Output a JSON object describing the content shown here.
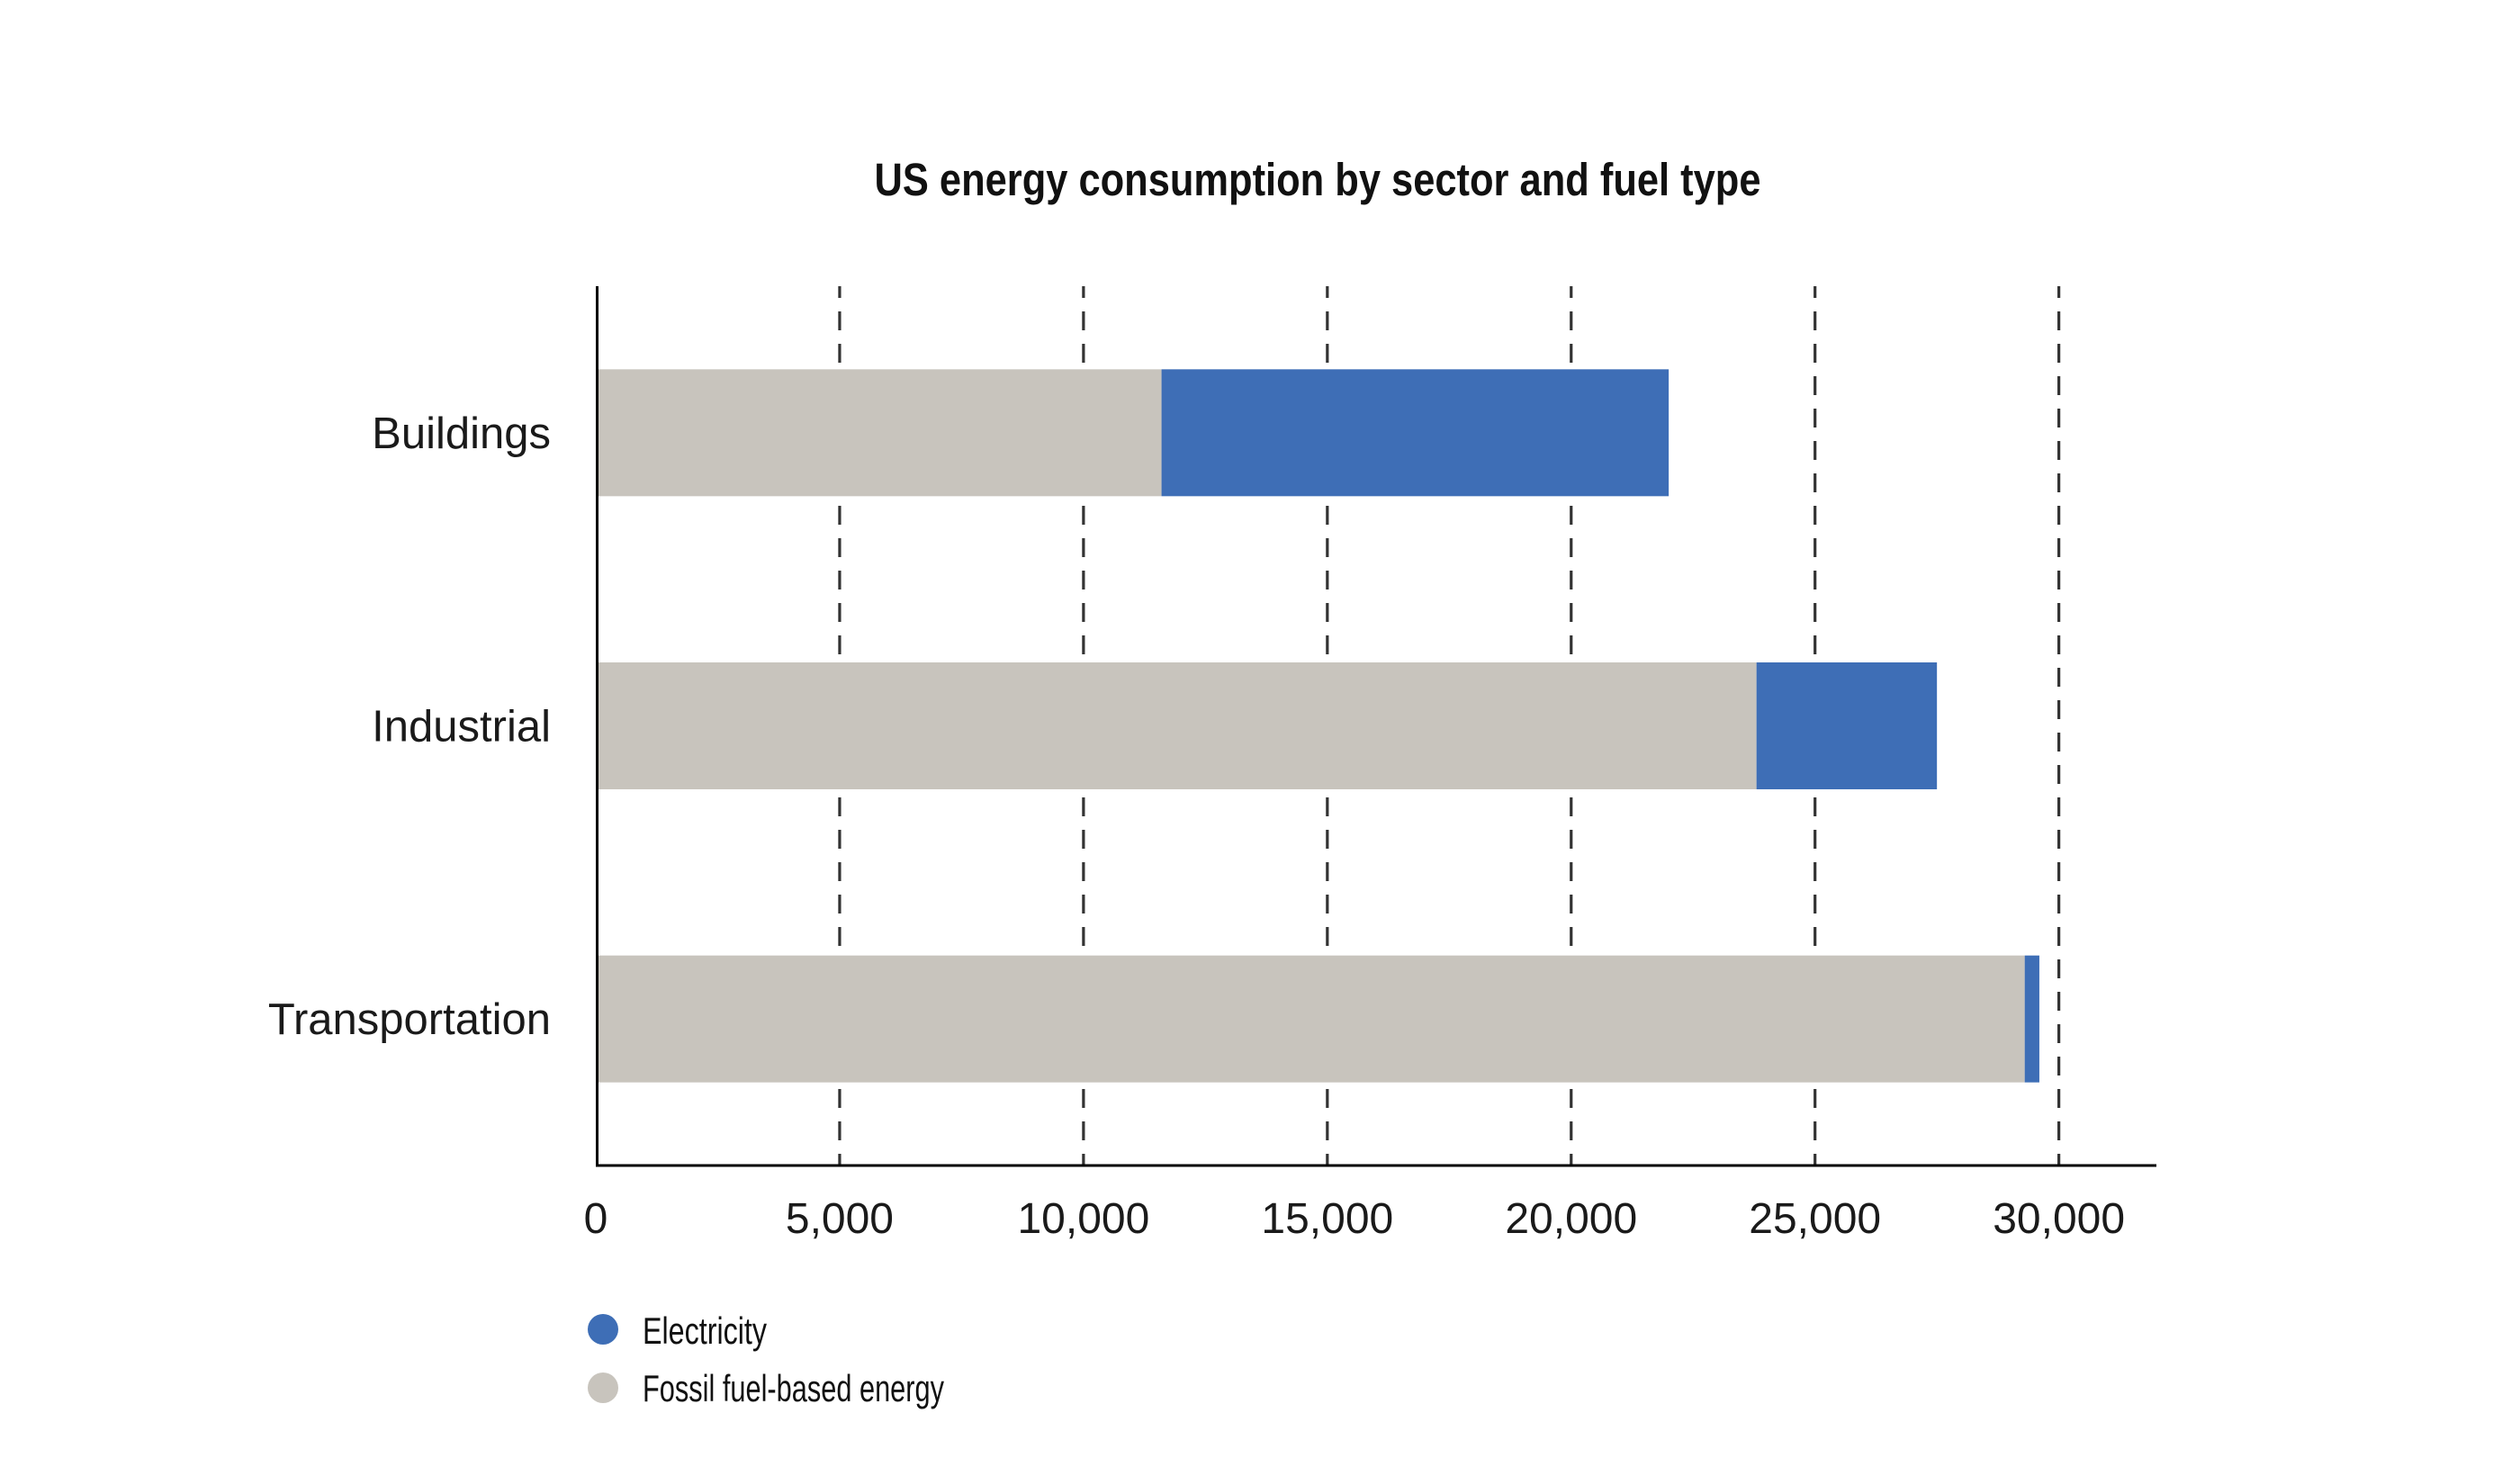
{
  "chart_data": {
    "type": "bar",
    "orientation": "horizontal",
    "stacked": true,
    "title": "US energy consumption by sector and fuel type",
    "categories": [
      "Buildings",
      "Industrial",
      "Transportation"
    ],
    "series": [
      {
        "name": "Electricity",
        "color": "#3e6eb6",
        "values": [
          10400,
          3700,
          300
        ]
      },
      {
        "name": "Fossil fuel-based energy",
        "color": "#c8c4bd",
        "values": [
          11600,
          23800,
          29300
        ]
      }
    ],
    "stack_order": [
      1,
      0
    ],
    "x_axis": {
      "min": 0,
      "max": 32000,
      "ticks": [
        {
          "value": 0,
          "label": "0"
        },
        {
          "value": 5000,
          "label": "5,000"
        },
        {
          "value": 10000,
          "label": "10,000"
        },
        {
          "value": 15000,
          "label": "15,000"
        },
        {
          "value": 20000,
          "label": "20,000"
        },
        {
          "value": 25000,
          "label": "25,000"
        },
        {
          "value": 30000,
          "label": "30,000"
        }
      ]
    },
    "legend_position": "bottom-left",
    "grid_style": "dashed",
    "grid_color": "#333333",
    "axis_color": "#000000"
  }
}
